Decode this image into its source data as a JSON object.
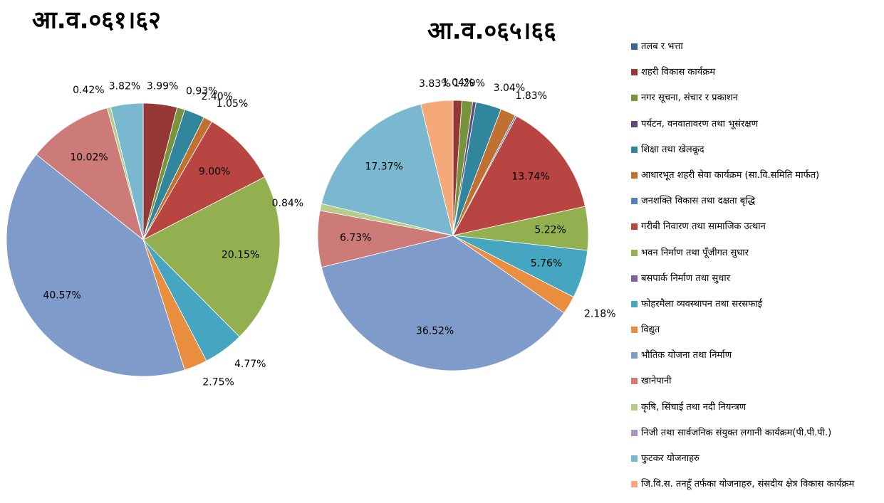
{
  "legend": {
    "categories": [
      "तलब र भत्ता",
      "शहरी विकास कार्यक्रम",
      "नगर सूचना, संचार र प्रकाशन",
      "पर्यटन, वनवातावरण तथा भूसंरक्षण",
      "शिक्षा तथा खेलकूद",
      "आधारभूत शहरी सेवा कार्यक्रम (सा.वि.समिति मार्फत)",
      "जनशक्ति विकास तथा दक्षता बृद्धि",
      "गरीबी निवारण तथा सामाजिक उत्थान",
      "भवन निर्माण तथा पूँजीगत सुधार",
      "बसपार्क निर्माण तथा सुधार",
      "फोहरमैला व्यवस्थापन तथा सरसफाई",
      "विद्युत",
      "भौतिक योजना तथा निर्माण",
      "खानेपानी",
      "कृषि, सिंचाई तथा नदी नियन्त्रण",
      "निजी तथा सार्वजनिक संयुक्त लगानी कार्यक्रम(पी.पी.पी.)",
      "फुटकर योजनाहरु",
      "जि.वि.स. तनहूँ तर्फका योजनाहरु, संसदीय क्षेत्र विकास कार्यक्रम"
    ],
    "colors": [
      "#3b6195",
      "#953735",
      "#77933c",
      "#604a7b",
      "#31859c",
      "#c0712f",
      "#4f81bd",
      "#b94542",
      "#92b050",
      "#7f62a0",
      "#46a5c0",
      "#e98d3f",
      "#7f9bc9",
      "#cd7b79",
      "#b5cd8a",
      "#a895c2",
      "#7ab8d0",
      "#f5a878"
    ]
  },
  "chart_data": [
    {
      "type": "pie",
      "title": "आ.व.०६१।६२",
      "values": [
        null,
        3.99,
        0.93,
        null,
        2.4,
        1.05,
        null,
        9.0,
        20.15,
        null,
        4.77,
        2.75,
        40.57,
        10.02,
        0.42,
        null,
        3.82,
        null
      ],
      "value_labels": [
        null,
        "3.99%",
        "0.93%",
        null,
        "2.40%",
        "1.05%",
        null,
        "9.00%",
        "20.15%",
        null,
        "4.77%",
        "2.75%",
        "40.57%",
        "10.02%",
        "0.42%",
        null,
        "3.82%",
        null
      ]
    },
    {
      "type": "pie",
      "title": "आ.व.०६५।६६",
      "values": [
        null,
        1.04,
        1.29,
        0.4,
        3.04,
        1.83,
        0.2,
        13.74,
        5.22,
        null,
        5.76,
        2.18,
        36.52,
        6.73,
        0.84,
        null,
        17.37,
        3.83
      ],
      "value_labels": [
        null,
        "1.04%",
        "1.29%",
        null,
        "3.04%",
        "1.83%",
        null,
        "13.74%",
        "5.22%",
        null,
        "5.76%",
        "2.18%",
        "36.52%",
        "6.73%",
        "0.84%",
        null,
        "17.37%",
        "3.83%"
      ]
    }
  ]
}
